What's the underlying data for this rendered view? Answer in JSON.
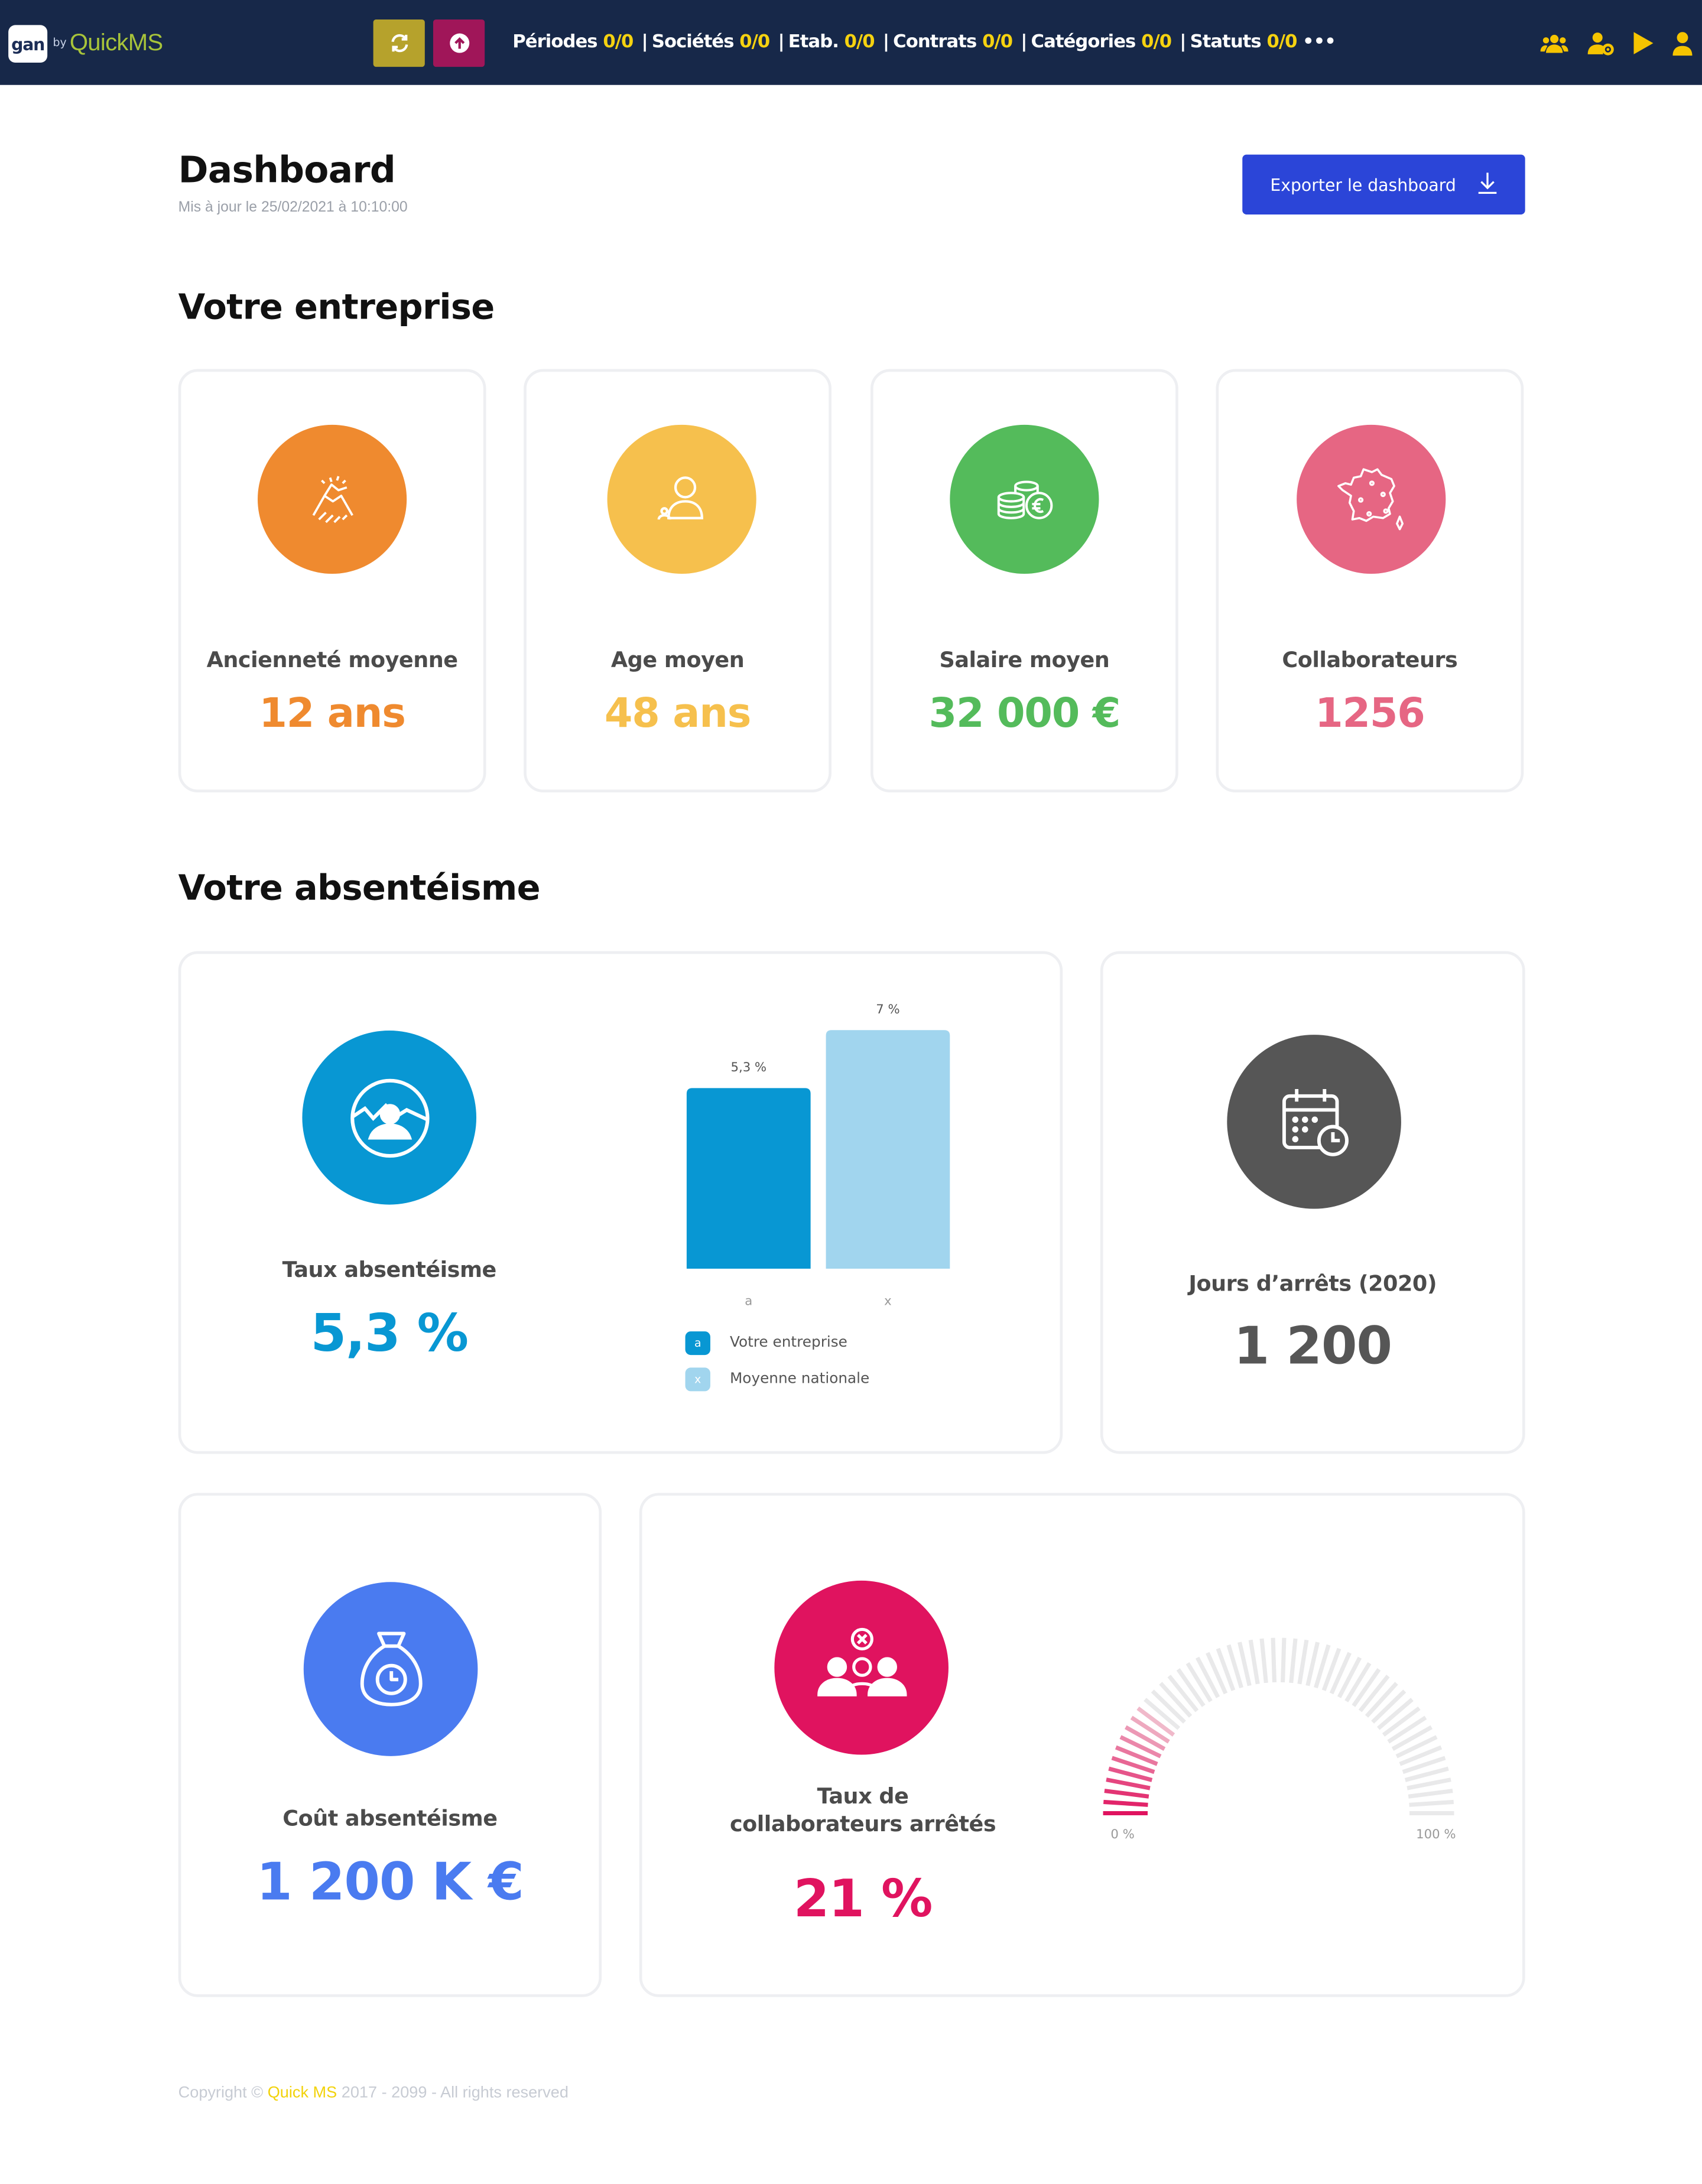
{
  "topbar": {
    "logo_gan": "gan",
    "logo_by": "by",
    "logo_quickms": "QuickMS",
    "filters": [
      {
        "label": "Périodes",
        "value": "0/0"
      },
      {
        "label": "Sociétés",
        "value": "0/0"
      },
      {
        "label": "Etab.",
        "value": "0/0"
      },
      {
        "label": "Contrats",
        "value": "0/0"
      },
      {
        "label": "Catégories",
        "value": "0/0"
      },
      {
        "label": "Statuts",
        "value": "0/0"
      }
    ],
    "more": "•••",
    "icons": [
      "refresh-icon",
      "upload-icon",
      "users-icon",
      "user-settings-icon",
      "play-icon",
      "user-icon"
    ],
    "colors": {
      "bg": "#172849",
      "refresh_btn": "#b6a22c",
      "upload_btn": "#a01659",
      "value": "#f5d210",
      "icon": "#f5c400"
    }
  },
  "header": {
    "title": "Dashboard",
    "updated": "Mis à jour le 25/02/2021 à 10:10:00",
    "export_label": "Exporter le dashboard"
  },
  "entreprise": {
    "title": "Votre entreprise",
    "cards": [
      {
        "label": "Ancienneté moyenne",
        "value": "12 ans",
        "color": "#ef8a2f",
        "icon": "handshake-icon"
      },
      {
        "label": "Age moyen",
        "value": "48 ans",
        "color": "#f6c04d",
        "icon": "person-icon"
      },
      {
        "label": "Salaire moyen",
        "value": "32 000 €",
        "color": "#54bb5b",
        "icon": "money-icon"
      },
      {
        "label": "Collaborateurs",
        "value": "1256",
        "color": "#e66683",
        "icon": "france-map-icon"
      }
    ]
  },
  "absenteisme": {
    "title": "Votre absentéisme",
    "taux": {
      "label": "Taux absentéisme",
      "value": "5,3 %",
      "color": "#0897d3",
      "icon": "person-chart-icon"
    },
    "jours": {
      "label": "Jours d’arrêts (2020)",
      "value": "1 200",
      "color": "#565656",
      "icon": "calendar-clock-icon"
    },
    "cout": {
      "label": "Coût absentéisme",
      "value": "1 200 K €",
      "color": "#4a7bf0",
      "icon": "money-bag-clock-icon"
    },
    "collab": {
      "label_line1": "Taux de",
      "label_line2": "collaborateurs arrêtés",
      "value": "21 %",
      "color": "#e0135f",
      "icon": "group-stop-icon",
      "gauge_min": "0 %",
      "gauge_max": "100 %",
      "gauge_fraction": 0.21
    }
  },
  "chart_data": {
    "type": "bar",
    "categories": [
      "a",
      "x"
    ],
    "values": [
      5.3,
      7
    ],
    "data_labels": [
      "5,3 %",
      "7 %"
    ],
    "colors": [
      "#0897d3",
      "#a1d5ee"
    ],
    "legend": [
      {
        "key": "a",
        "label": "Votre entreprise"
      },
      {
        "key": "x",
        "label": "Moyenne nationale"
      }
    ],
    "ylim": [
      0,
      7.6
    ],
    "grid": false,
    "legend_position": "bottom-left"
  },
  "footer": {
    "copyright": "Copyright ©",
    "brand": "Quick MS",
    "rest": "2017 - 2099 - All rights reserved"
  }
}
